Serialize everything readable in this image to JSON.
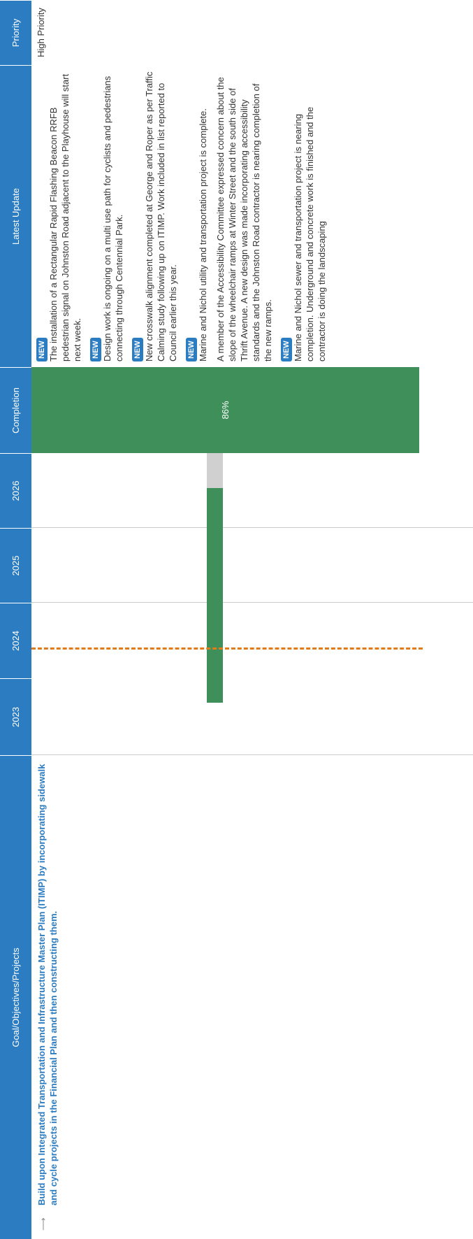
{
  "header": [
    "Goal/Objectives/Projects",
    "2023",
    "2024",
    "2025",
    "2026",
    "Completion",
    "Latest Update",
    "Priority"
  ],
  "row": {
    "goal": "Build upon Integrated Transportation and Infrastructure Master Plan (ITIMP) by incorporating sidewalk and cycle projects in the Financial Plan and then constructing them.",
    "completion": 86,
    "completion_label": "86%",
    "updates": [
      {
        "badge": "NEW",
        "text": "The installation of a Rectangular Rapid Flashing Beacon RRFB pedestrian signal on Johnston Road adjacent to the Playhouse will start next week."
      },
      {
        "badge": "NEW",
        "text": "Design work is ongoing on a multi use path for cyclists and pedestrians connecting through Centennial Park."
      },
      {
        "badge": "NEW",
        "text": "New crosswalk alignment completed at George and Roper as per Traffic Calming study following up on ITIMP. Work included in list reported to Council earlier this year."
      },
      {
        "badge": "NEW",
        "text": "Marine and Nichol utility and transportation project is complete."
      },
      {
        "text": "A member of the Accessibility Committee expressed concern about the slope of the wheelchair ramps at Winter Street and the south side of Thrift Avenue. A new design was made incorporating accessibility standards and the Johnston Road contractor is nearing completion of the new ramps."
      },
      {
        "badge": "NEW",
        "text": "Marine and Nichol sewer and transportation project is nearing completion. Underground and concrete work is finished and the contractor is doing the landscaping"
      }
    ],
    "priority": "High Priority"
  }
}
